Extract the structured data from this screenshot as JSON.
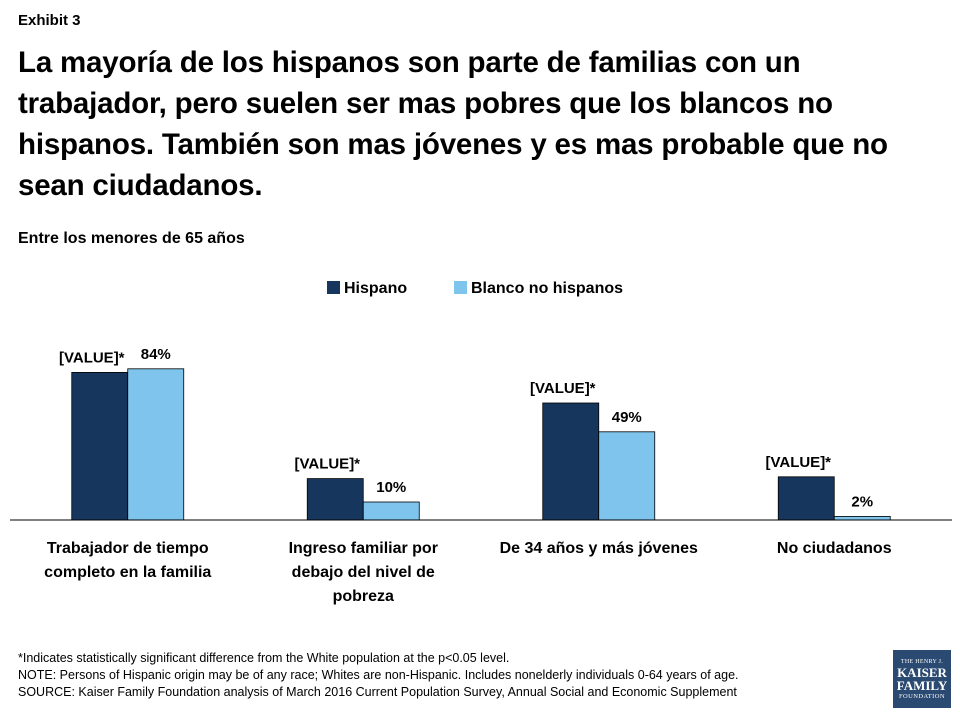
{
  "exhibit_label": "Exhibit 3",
  "title": "La mayoría de los hispanos son parte de familias con un trabajador, pero suelen ser mas pobres que los blancos no hispanos. También son mas jóvenes y es mas probable que no sean ciudadanos.",
  "subtitle": "Entre los menores de 65 años",
  "colors": {
    "hispano": "#17365d",
    "blanco": "#7ec4ec"
  },
  "chart_data": {
    "type": "bar",
    "categories": [
      [
        "Trabajador de tiempo",
        "completo en la familia"
      ],
      [
        "Ingreso familiar por",
        "debajo del nivel de",
        "pobreza"
      ],
      [
        "De 34 años y más jóvenes"
      ],
      [
        "No ciudadanos"
      ]
    ],
    "series": [
      {
        "name": "Hispano",
        "values": [
          82,
          23,
          65,
          24
        ],
        "labels": [
          "[VALUE]*",
          "[VALUE]*",
          "[VALUE]*",
          "[VALUE]*"
        ]
      },
      {
        "name": "Blanco no hispanos",
        "values": [
          84,
          10,
          49,
          2
        ],
        "labels": [
          "84%",
          "10%",
          "49%",
          "2%"
        ]
      }
    ],
    "ylim": [
      0,
      100
    ],
    "grid": false,
    "legend": "top-center"
  },
  "notes": [
    "*Indicates statistically significant difference from the White population at the p<0.05 level.",
    "NOTE: Persons of Hispanic origin may be of any race; Whites are non-Hispanic. Includes nonelderly individuals 0-64 years of age.",
    "SOURCE: Kaiser Family Foundation analysis of March 2016 Current Population Survey, Annual Social and Economic Supplement"
  ],
  "logo": {
    "line1": "THE HENRY J.",
    "line2": "KAISER",
    "line3": "FAMILY",
    "line4": "FOUNDATION"
  }
}
